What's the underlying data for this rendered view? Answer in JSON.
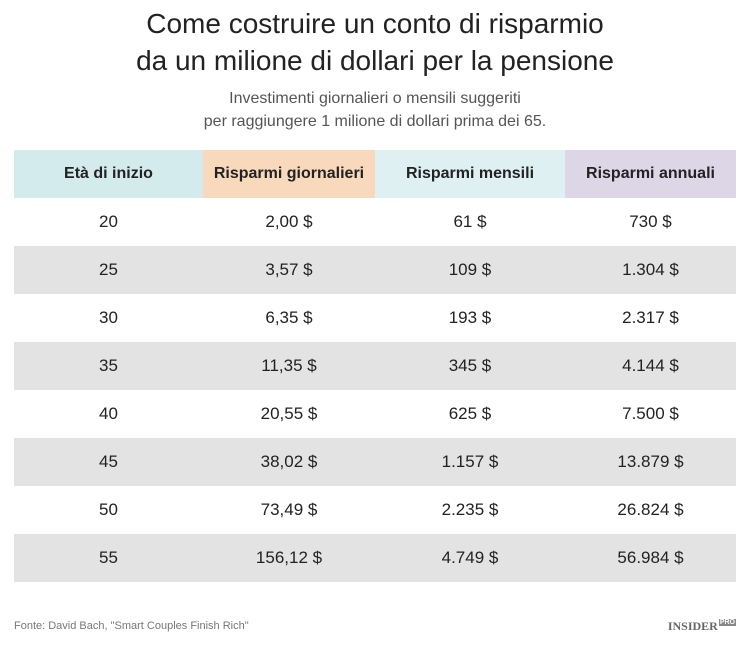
{
  "header": {
    "title": [
      "Come costruire un conto di risparmio",
      "da un milione di dollari per la pensione"
    ],
    "subtitle": [
      "Investimenti giornalieri o mensili suggeriti",
      "per raggiungere 1 milione di dollari prima dei 65."
    ]
  },
  "table": {
    "columns": [
      "Età di inizio",
      "Risparmi giornalieri",
      "Risparmi mensili",
      "Risparmi annuali"
    ],
    "rows": [
      [
        "20",
        "2,00 $",
        "61 $",
        "730 $"
      ],
      [
        "25",
        "3,57 $",
        "109 $",
        "1.304 $"
      ],
      [
        "30",
        "6,35 $",
        "193 $",
        "2.317 $"
      ],
      [
        "35",
        "11,35 $",
        "345 $",
        "4.144 $"
      ],
      [
        "40",
        "20,55 $",
        "625 $",
        "7.500 $"
      ],
      [
        "45",
        "38,02 $",
        "1.157 $",
        "13.879 $"
      ],
      [
        "50",
        "73,49 $",
        "2.235 $",
        "26.824 $"
      ],
      [
        "55",
        "156,12 $",
        "4.749 $",
        "56.984 $"
      ]
    ]
  },
  "footer": {
    "source": "Fonte: David Bach, \"Smart Couples Finish Rich\"",
    "logo": "INSIDER",
    "logo_suffix": "PRO"
  }
}
